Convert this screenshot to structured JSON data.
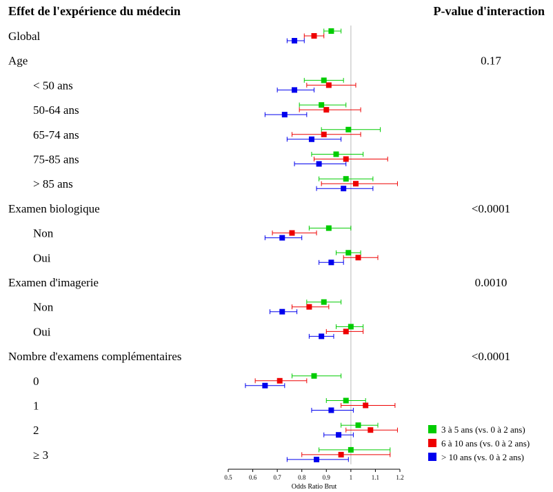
{
  "header": {
    "left_title": "Effet de l'expérience du médecin",
    "right_title": "P-value d'interaction"
  },
  "chart_data": {
    "type": "forest",
    "title": "Effet de l'expérience du médecin",
    "xlabel": "Odds Ratio Brut",
    "xlim": [
      0.5,
      1.2
    ],
    "x_ticks": [
      "0.5",
      "0.6",
      "0.7",
      "0.8",
      "0.9",
      "1",
      "1.1",
      "1.2"
    ],
    "reference_line": 1.0,
    "legend_position": "bottom-right",
    "series": [
      {
        "name": "3 à 5 ans (vs. 0 à 2 ans)",
        "color": "#00cc00"
      },
      {
        "name": "6 à 10 ans (vs. 0 à 2 ans)",
        "color": "#ee0000"
      },
      {
        "name": "> 10 ans (vs. 0 à 2 ans)",
        "color": "#0000ee"
      }
    ],
    "rows": [
      {
        "label": "Global",
        "indent": false,
        "estimates": [
          [
            0.92,
            0.89,
            0.96
          ],
          [
            0.85,
            0.81,
            0.89
          ],
          [
            0.77,
            0.74,
            0.81
          ]
        ]
      },
      {
        "label": "Age",
        "indent": false,
        "pvalue": "0.17"
      },
      {
        "label": "< 50 ans",
        "indent": true,
        "estimates": [
          [
            0.89,
            0.81,
            0.97
          ],
          [
            0.91,
            0.82,
            1.02
          ],
          [
            0.77,
            0.7,
            0.85
          ]
        ]
      },
      {
        "label": "50-64 ans",
        "indent": true,
        "estimates": [
          [
            0.88,
            0.79,
            0.98
          ],
          [
            0.9,
            0.79,
            1.04
          ],
          [
            0.73,
            0.65,
            0.82
          ]
        ]
      },
      {
        "label": "65-74 ans",
        "indent": true,
        "estimates": [
          [
            0.99,
            0.88,
            1.12
          ],
          [
            0.89,
            0.76,
            1.04
          ],
          [
            0.84,
            0.74,
            0.96
          ]
        ]
      },
      {
        "label": "75-85 ans",
        "indent": true,
        "estimates": [
          [
            0.94,
            0.84,
            1.05
          ],
          [
            0.98,
            0.85,
            1.15
          ],
          [
            0.87,
            0.77,
            0.98
          ]
        ]
      },
      {
        "label": "> 85 ans",
        "indent": true,
        "estimates": [
          [
            0.98,
            0.87,
            1.09
          ],
          [
            1.02,
            0.88,
            1.19
          ],
          [
            0.97,
            0.86,
            1.09
          ]
        ]
      },
      {
        "label": "Examen biologique",
        "indent": false,
        "pvalue": "<0.0001"
      },
      {
        "label": "Non",
        "indent": true,
        "estimates": [
          [
            0.91,
            0.83,
            1.0
          ],
          [
            0.76,
            0.68,
            0.86
          ],
          [
            0.72,
            0.65,
            0.8
          ]
        ]
      },
      {
        "label": "Oui",
        "indent": true,
        "estimates": [
          [
            0.99,
            0.94,
            1.04
          ],
          [
            1.03,
            0.97,
            1.11
          ],
          [
            0.92,
            0.87,
            0.97
          ]
        ]
      },
      {
        "label": "Examen d'imagerie",
        "indent": false,
        "pvalue": "0.0010"
      },
      {
        "label": "Non",
        "indent": true,
        "estimates": [
          [
            0.89,
            0.82,
            0.96
          ],
          [
            0.83,
            0.76,
            0.91
          ],
          [
            0.72,
            0.67,
            0.78
          ]
        ]
      },
      {
        "label": "Oui",
        "indent": true,
        "estimates": [
          [
            1.0,
            0.94,
            1.05
          ],
          [
            0.98,
            0.9,
            1.05
          ],
          [
            0.88,
            0.83,
            0.93
          ]
        ]
      },
      {
        "label": "Nombre d'examens complémentaires",
        "indent": false,
        "pvalue": "<0.0001"
      },
      {
        "label": "0",
        "indent": true,
        "estimates": [
          [
            0.85,
            0.76,
            0.96
          ],
          [
            0.71,
            0.61,
            0.82
          ],
          [
            0.65,
            0.57,
            0.73
          ]
        ]
      },
      {
        "label": "1",
        "indent": true,
        "estimates": [
          [
            0.98,
            0.9,
            1.06
          ],
          [
            1.06,
            0.96,
            1.18
          ],
          [
            0.92,
            0.84,
            1.01
          ]
        ]
      },
      {
        "label": "2",
        "indent": true,
        "estimates": [
          [
            1.03,
            0.96,
            1.11
          ],
          [
            1.08,
            0.98,
            1.19
          ],
          [
            0.95,
            0.89,
            1.01
          ]
        ]
      },
      {
        "label": "≥ 3",
        "indent": true,
        "estimates": [
          [
            1.0,
            0.87,
            1.16
          ],
          [
            0.96,
            0.8,
            1.16
          ],
          [
            0.86,
            0.74,
            0.99
          ]
        ]
      }
    ]
  }
}
